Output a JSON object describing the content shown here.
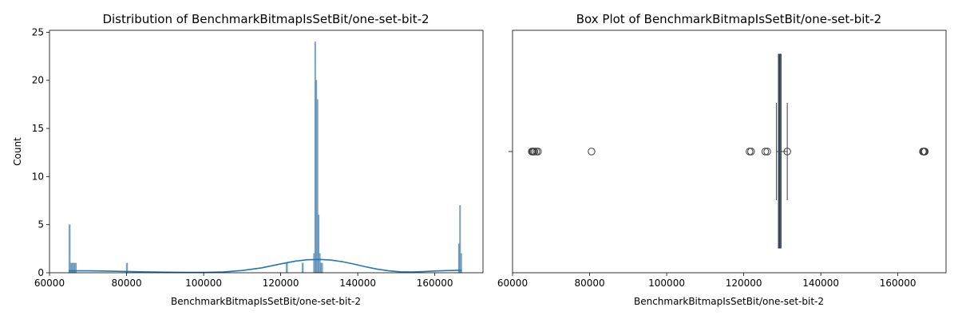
{
  "chart_data": [
    {
      "type": "histogram",
      "title": "Distribution of BenchmarkBitmapIsSetBit/one-set-bit-2",
      "xlabel": "BenchmarkBitmapIsSetBit/one-set-bit-2",
      "ylabel": "Count",
      "xlim": [
        60000,
        172500
      ],
      "ylim": [
        0,
        25.2
      ],
      "xticks": [
        60000,
        80000,
        100000,
        120000,
        140000,
        160000
      ],
      "yticks": [
        0,
        5,
        10,
        15,
        20,
        25
      ],
      "bar_color": "#6f9cc1",
      "kde_color": "#1f77b4",
      "bins": [
        {
          "x0": 65000,
          "x1": 65400,
          "count": 5
        },
        {
          "x0": 65400,
          "x1": 65800,
          "count": 1
        },
        {
          "x0": 65800,
          "x1": 66200,
          "count": 1
        },
        {
          "x0": 66200,
          "x1": 66600,
          "count": 1
        },
        {
          "x0": 66600,
          "x1": 67000,
          "count": 1
        },
        {
          "x0": 79900,
          "x1": 80300,
          "count": 1
        },
        {
          "x0": 121400,
          "x1": 121800,
          "count": 1
        },
        {
          "x0": 125500,
          "x1": 125900,
          "count": 1
        },
        {
          "x0": 128500,
          "x1": 128800,
          "count": 2
        },
        {
          "x0": 128800,
          "x1": 129100,
          "count": 24
        },
        {
          "x0": 129100,
          "x1": 129400,
          "count": 20
        },
        {
          "x0": 129400,
          "x1": 129700,
          "count": 18
        },
        {
          "x0": 129700,
          "x1": 130000,
          "count": 6
        },
        {
          "x0": 130000,
          "x1": 130300,
          "count": 2
        },
        {
          "x0": 130300,
          "x1": 130600,
          "count": 1
        },
        {
          "x0": 130600,
          "x1": 130900,
          "count": 1
        },
        {
          "x0": 166100,
          "x1": 166400,
          "count": 3
        },
        {
          "x0": 166400,
          "x1": 166700,
          "count": 7
        },
        {
          "x0": 166700,
          "x1": 167000,
          "count": 2
        }
      ],
      "kde": {
        "x": [
          65000,
          70000,
          75000,
          80000,
          85000,
          90000,
          95000,
          100000,
          105000,
          110000,
          115000,
          118000,
          121000,
          124000,
          127000,
          130000,
          133000,
          136000,
          139000,
          142000,
          145000,
          148000,
          151000,
          154000,
          157000,
          160000,
          163000,
          166000,
          167000
        ],
        "y": [
          0.2,
          0.2,
          0.17,
          0.13,
          0.09,
          0.06,
          0.04,
          0.04,
          0.08,
          0.23,
          0.5,
          0.75,
          1.0,
          1.22,
          1.35,
          1.38,
          1.32,
          1.15,
          0.9,
          0.62,
          0.38,
          0.2,
          0.1,
          0.08,
          0.12,
          0.18,
          0.22,
          0.25,
          0.25
        ]
      }
    },
    {
      "type": "box",
      "title": "Box Plot of BenchmarkBitmapIsSetBit/one-set-bit-2",
      "xlabel": "BenchmarkBitmapIsSetBit/one-set-bit-2",
      "xlim": [
        60000,
        172500
      ],
      "xticks": [
        60000,
        80000,
        100000,
        120000,
        140000,
        160000
      ],
      "box_color": "#3a6e97",
      "q1": 129000,
      "median": 129300,
      "q3": 129700,
      "whisker_low": 128500,
      "whisker_high": 131300,
      "outliers": [
        65000,
        65200,
        65400,
        65700,
        66200,
        66600,
        80500,
        121500,
        121900,
        125600,
        126100,
        131300,
        166500,
        166700,
        166900,
        167000
      ]
    }
  ]
}
